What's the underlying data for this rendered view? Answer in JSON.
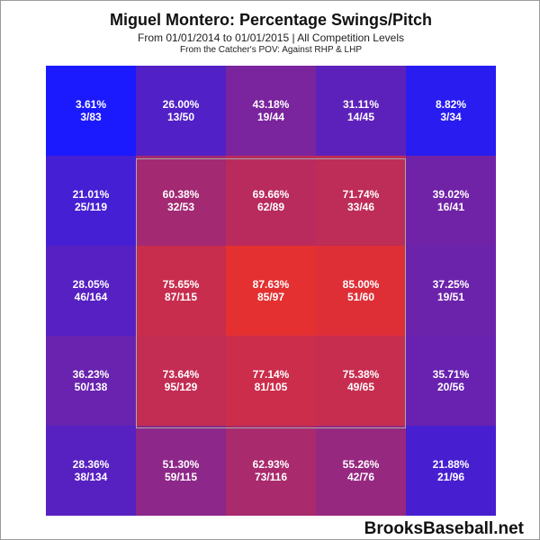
{
  "chart_data": {
    "type": "heatmap",
    "title": "Miguel Montero: Percentage Swings/Pitch",
    "subtitle": "From 01/01/2014 to 01/01/2015 | All Competition Levels",
    "subtitle2": "From the Catcher's POV:  Against RHP & LHP",
    "rows": 5,
    "cols": 5,
    "cells": [
      [
        {
          "pct": "3.61%",
          "frac": "3/83",
          "value": 3.61
        },
        {
          "pct": "26.00%",
          "frac": "13/50",
          "value": 26.0
        },
        {
          "pct": "43.18%",
          "frac": "19/44",
          "value": 43.18
        },
        {
          "pct": "31.11%",
          "frac": "14/45",
          "value": 31.11
        },
        {
          "pct": "8.82%",
          "frac": "3/34",
          "value": 8.82
        }
      ],
      [
        {
          "pct": "21.01%",
          "frac": "25/119",
          "value": 21.01
        },
        {
          "pct": "60.38%",
          "frac": "32/53",
          "value": 60.38
        },
        {
          "pct": "69.66%",
          "frac": "62/89",
          "value": 69.66
        },
        {
          "pct": "71.74%",
          "frac": "33/46",
          "value": 71.74
        },
        {
          "pct": "39.02%",
          "frac": "16/41",
          "value": 39.02
        }
      ],
      [
        {
          "pct": "28.05%",
          "frac": "46/164",
          "value": 28.05
        },
        {
          "pct": "75.65%",
          "frac": "87/115",
          "value": 75.65
        },
        {
          "pct": "87.63%",
          "frac": "85/97",
          "value": 87.63
        },
        {
          "pct": "85.00%",
          "frac": "51/60",
          "value": 85.0
        },
        {
          "pct": "37.25%",
          "frac": "19/51",
          "value": 37.25
        }
      ],
      [
        {
          "pct": "36.23%",
          "frac": "50/138",
          "value": 36.23
        },
        {
          "pct": "73.64%",
          "frac": "95/129",
          "value": 73.64
        },
        {
          "pct": "77.14%",
          "frac": "81/105",
          "value": 77.14
        },
        {
          "pct": "75.38%",
          "frac": "49/65",
          "value": 75.38
        },
        {
          "pct": "35.71%",
          "frac": "20/56",
          "value": 35.71
        }
      ],
      [
        {
          "pct": "28.36%",
          "frac": "38/134",
          "value": 28.36
        },
        {
          "pct": "51.30%",
          "frac": "59/115",
          "value": 51.3
        },
        {
          "pct": "62.93%",
          "frac": "73/116",
          "value": 62.93
        },
        {
          "pct": "55.26%",
          "frac": "42/76",
          "value": 55.26
        },
        {
          "pct": "21.88%",
          "frac": "21/96",
          "value": 21.88
        }
      ]
    ],
    "color_scale": {
      "low": "#1a1aff",
      "high": "#e53030"
    },
    "strike_zone": "center 3x3"
  },
  "footer": "BrooksBaseball.net"
}
